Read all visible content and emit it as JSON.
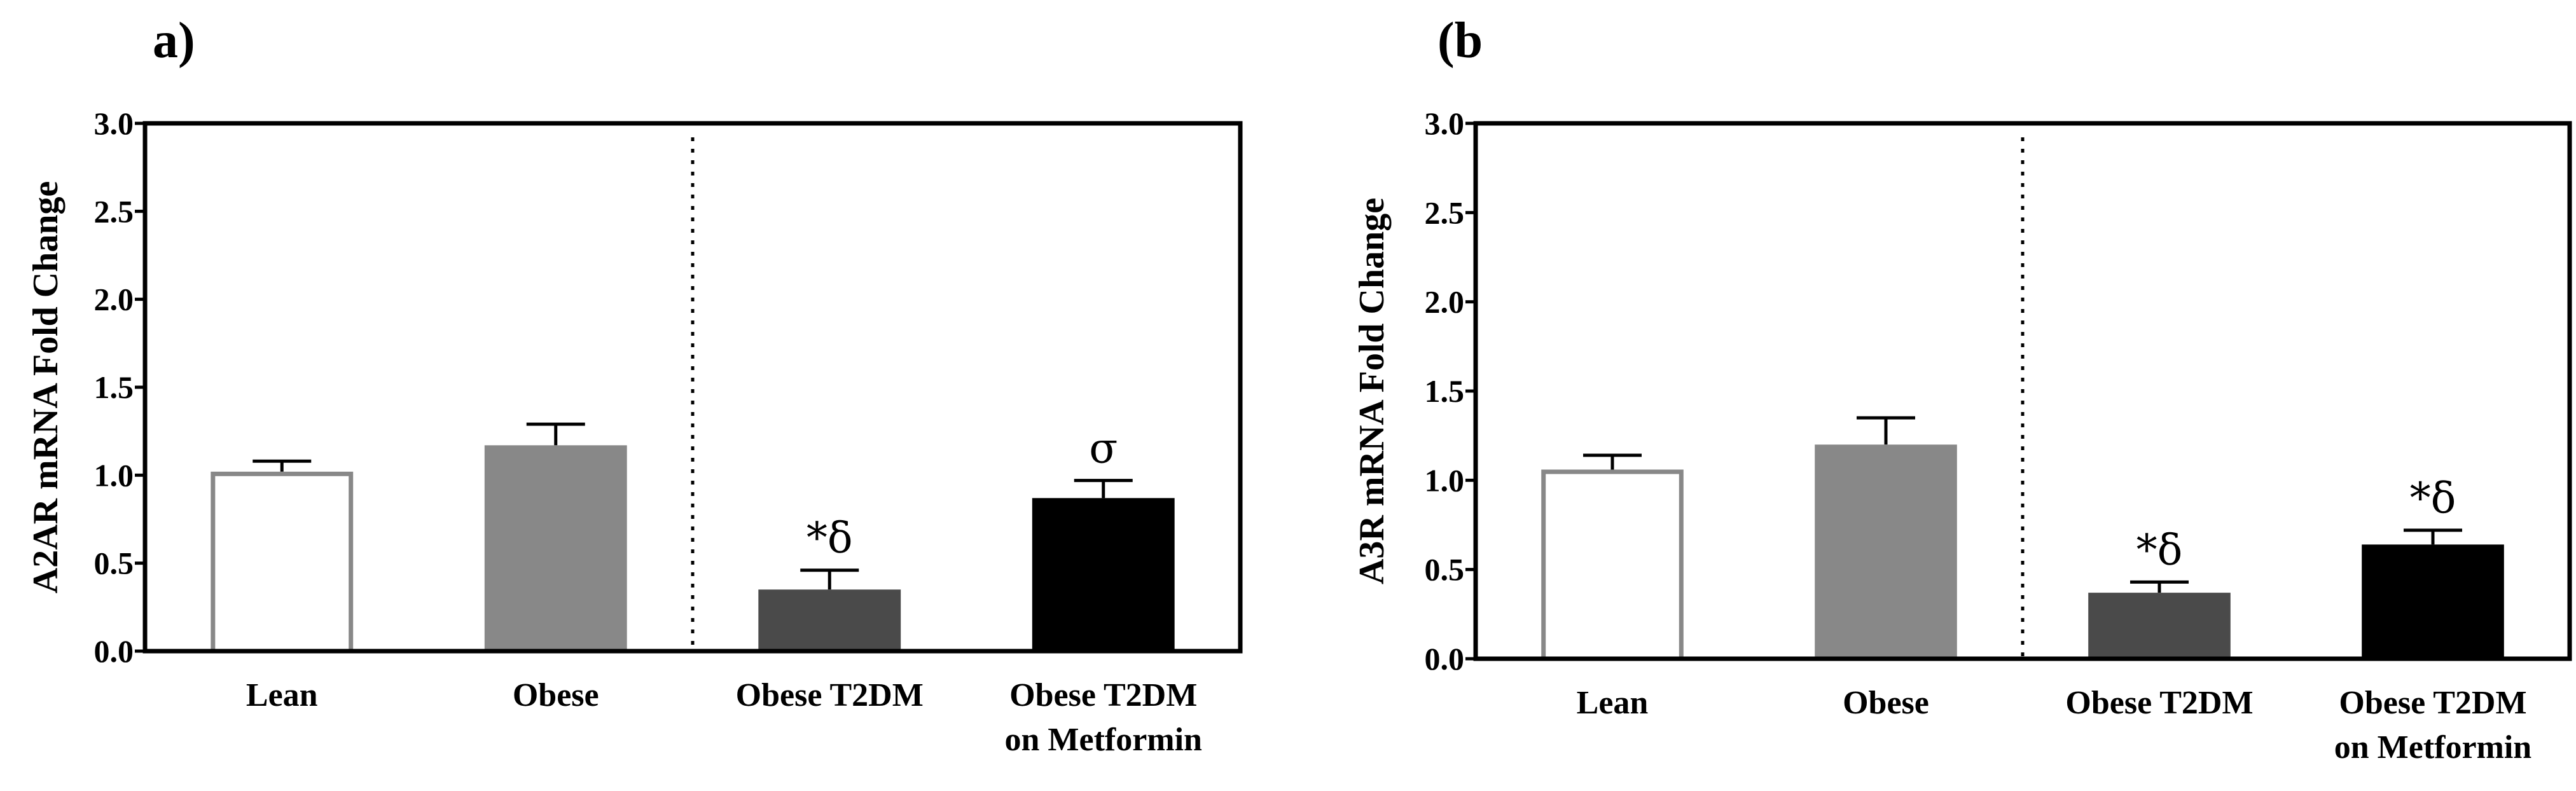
{
  "chart_data": [
    {
      "panel_label": "a)",
      "type": "bar",
      "title": "",
      "xlabel": "",
      "ylabel": "A2AR mRNA Fold Change",
      "ylim": [
        0,
        3.0
      ],
      "yticks": [
        "0.0",
        "0.5",
        "1.0",
        "1.5",
        "2.0",
        "2.5",
        "3.0"
      ],
      "grid": false,
      "divider_after_category": 2,
      "categories": [
        {
          "line1": "Lean",
          "line2": ""
        },
        {
          "line1": "Obese",
          "line2": ""
        },
        {
          "line1": "Obese T2DM",
          "line2": ""
        },
        {
          "line1": "Obese T2DM",
          "line2": "on Metformin"
        }
      ],
      "values": [
        1.02,
        1.17,
        0.35,
        0.87
      ],
      "errors": [
        0.06,
        0.12,
        0.11,
        0.1
      ],
      "annotations": [
        "",
        "",
        "*δ",
        "σ"
      ],
      "colors": {
        "fill": [
          "#ffffff",
          "#888888",
          "#4a4a4a",
          "#000000"
        ],
        "stroke": [
          "#888888",
          "#888888",
          "#4a4a4a",
          "#000000"
        ]
      }
    },
    {
      "panel_label": "(b",
      "type": "bar",
      "title": "",
      "xlabel": "",
      "ylabel": "A3R mRNA Fold Change",
      "ylim": [
        0,
        3.0
      ],
      "yticks": [
        "0.0",
        "0.5",
        "1.0",
        "1.5",
        "2.0",
        "2.5",
        "3.0"
      ],
      "grid": false,
      "divider_after_category": 2,
      "categories": [
        {
          "line1": "Lean",
          "line2": ""
        },
        {
          "line1": "Obese",
          "line2": ""
        },
        {
          "line1": "Obese T2DM",
          "line2": ""
        },
        {
          "line1": "Obese T2DM",
          "line2": "on Metformin"
        }
      ],
      "values": [
        1.06,
        1.2,
        0.37,
        0.64
      ],
      "errors": [
        0.08,
        0.15,
        0.06,
        0.08
      ],
      "annotations": [
        "",
        "",
        "*δ",
        "*δ"
      ],
      "colors": {
        "fill": [
          "#ffffff",
          "#888888",
          "#4a4a4a",
          "#000000"
        ],
        "stroke": [
          "#888888",
          "#888888",
          "#4a4a4a",
          "#000000"
        ]
      }
    }
  ]
}
